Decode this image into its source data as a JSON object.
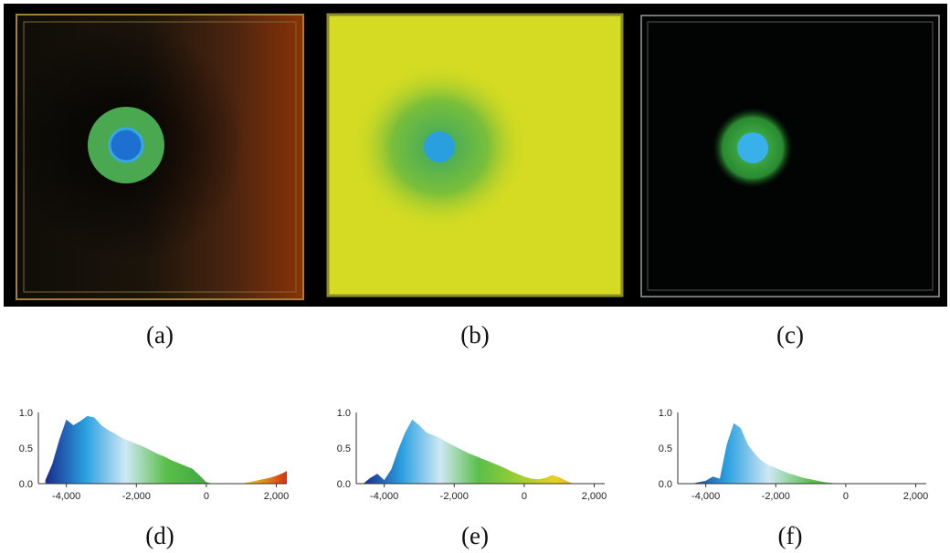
{
  "figure": {
    "panels": [
      {
        "id": "a",
        "label": "(a)",
        "volume_color": "#2a1a0e"
      },
      {
        "id": "b",
        "label": "(b)",
        "volume_color": "#d6dc20"
      },
      {
        "id": "c",
        "label": "(c)",
        "volume_color": "#020404"
      }
    ],
    "histogram_labels": [
      "(d)",
      "(e)",
      "(f)"
    ]
  },
  "chart_data": [
    {
      "type": "area",
      "panel": "(d)",
      "x_ticks": [
        "-4,000",
        "-2,000",
        "0",
        "2,000"
      ],
      "y_ticks": [
        "0.0",
        "0.5",
        "1.0"
      ],
      "xlim": [
        -4800,
        2300
      ],
      "ylim": [
        0,
        1.0
      ],
      "x": [
        -4600,
        -4400,
        -4200,
        -4000,
        -3800,
        -3600,
        -3400,
        -3200,
        -3000,
        -2800,
        -2600,
        -2400,
        -2200,
        -2000,
        -1800,
        -1600,
        -1400,
        -1200,
        -1000,
        -800,
        -600,
        -400,
        -200,
        0,
        200,
        400,
        600,
        800,
        1000,
        1200,
        1400,
        1600,
        1800,
        2000,
        2200,
        2300
      ],
      "values": [
        0.05,
        0.28,
        0.62,
        0.9,
        0.82,
        0.88,
        0.95,
        0.93,
        0.82,
        0.75,
        0.7,
        0.64,
        0.6,
        0.56,
        0.52,
        0.47,
        0.42,
        0.38,
        0.33,
        0.29,
        0.25,
        0.21,
        0.12,
        0.02,
        0.0,
        0.0,
        0.0,
        0.0,
        0.0,
        0.02,
        0.04,
        0.06,
        0.08,
        0.11,
        0.15,
        0.18
      ],
      "colormap": [
        "#1a2a8c",
        "#2aa0e0",
        "#cfe8f4",
        "#5abf4a",
        "#40a840",
        "#e8d020",
        "#d83010"
      ]
    },
    {
      "type": "area",
      "panel": "(e)",
      "x_ticks": [
        "-4,000",
        "-2,000",
        "0",
        "2,000"
      ],
      "y_ticks": [
        "0.0",
        "0.5",
        "1.0"
      ],
      "xlim": [
        -4800,
        2300
      ],
      "ylim": [
        0,
        1.0
      ],
      "x": [
        -4600,
        -4400,
        -4200,
        -4000,
        -3800,
        -3600,
        -3400,
        -3200,
        -3000,
        -2800,
        -2600,
        -2400,
        -2200,
        -2000,
        -1800,
        -1600,
        -1400,
        -1200,
        -1000,
        -800,
        -600,
        -400,
        -200,
        0,
        200,
        400,
        600,
        800,
        1000,
        1200,
        1400,
        1600,
        1800,
        2000
      ],
      "values": [
        0.0,
        0.08,
        0.14,
        0.05,
        0.2,
        0.48,
        0.72,
        0.9,
        0.82,
        0.72,
        0.68,
        0.64,
        0.58,
        0.53,
        0.48,
        0.43,
        0.39,
        0.35,
        0.31,
        0.27,
        0.23,
        0.18,
        0.14,
        0.1,
        0.07,
        0.06,
        0.08,
        0.12,
        0.09,
        0.04,
        0.0,
        0.0,
        0.0,
        0.0
      ],
      "colormap": [
        "#1a2a8c",
        "#2aa0e0",
        "#cfe8f4",
        "#5abf4a",
        "#9acd32",
        "#e8d020",
        "#e09020"
      ]
    },
    {
      "type": "area",
      "panel": "(f)",
      "x_ticks": [
        "-4,000",
        "-2,000",
        "0",
        "2,000"
      ],
      "y_ticks": [
        "0.0",
        "0.5",
        "1.0"
      ],
      "xlim": [
        -4800,
        2300
      ],
      "ylim": [
        0,
        1.0
      ],
      "x": [
        -4600,
        -4400,
        -4200,
        -4000,
        -3800,
        -3600,
        -3400,
        -3200,
        -3000,
        -2800,
        -2600,
        -2400,
        -2200,
        -2000,
        -1800,
        -1600,
        -1400,
        -1200,
        -1000,
        -800,
        -600,
        -400,
        -200,
        0,
        200
      ],
      "values": [
        0.0,
        0.0,
        0.02,
        0.04,
        0.1,
        0.07,
        0.55,
        0.85,
        0.78,
        0.55,
        0.42,
        0.32,
        0.26,
        0.22,
        0.18,
        0.14,
        0.11,
        0.08,
        0.06,
        0.04,
        0.02,
        0.01,
        0.0,
        0.0,
        0.0
      ],
      "colormap": [
        "#1a2a8c",
        "#2aa0e0",
        "#cfe8f4",
        "#5abf4a",
        "#40a840"
      ]
    }
  ]
}
